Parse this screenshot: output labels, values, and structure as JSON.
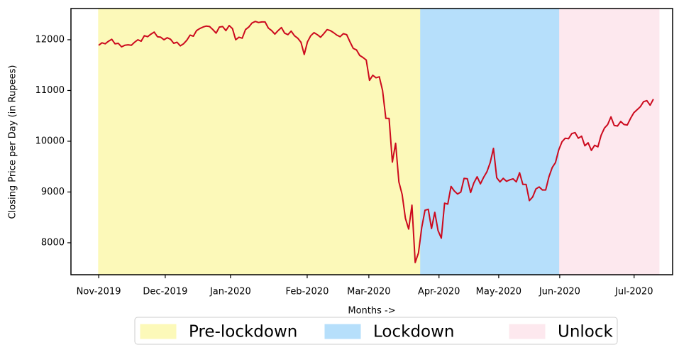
{
  "chart_data": {
    "type": "line",
    "y_label": "Closing Price per Day (in Rupees)",
    "x_label": "Months ->",
    "color": "#cc0a1e",
    "xlim": [
      -8.5,
      175.9
    ],
    "ylim": [
      7370,
      12615
    ],
    "yticks": [
      8000,
      9000,
      10000,
      11000,
      12000
    ],
    "xticks": [
      {
        "value": 0,
        "label": "Nov-2019"
      },
      {
        "value": 20.4,
        "label": "Dec-2019"
      },
      {
        "value": 40.4,
        "label": "Jan-2020"
      },
      {
        "value": 63.9,
        "label": "Feb-2020"
      },
      {
        "value": 82.8,
        "label": "Mar-2020"
      },
      {
        "value": 104.3,
        "label": "Apr-2020"
      },
      {
        "value": 122.6,
        "label": "May-2020"
      },
      {
        "value": 141.3,
        "label": "Jun-2020"
      },
      {
        "value": 164.1,
        "label": "Jul-2020"
      }
    ],
    "spans": [
      {
        "name": "Pre-lockdown",
        "color": "#fcf9b9",
        "from": 0,
        "to": 98.7
      },
      {
        "name": "Lockdown",
        "color": "#b6dffb",
        "from": 98.7,
        "to": 141.3
      },
      {
        "name": "Unlock",
        "color": "#fde8ee",
        "from": 141.3,
        "to": 171.7
      }
    ],
    "values": [
      11890,
      11940,
      11920,
      11970,
      12010,
      11920,
      11930,
      11860,
      11890,
      11900,
      11890,
      11950,
      12000,
      11970,
      12080,
      12060,
      12110,
      12150,
      12060,
      12050,
      12000,
      12040,
      12010,
      11930,
      11950,
      11880,
      11920,
      11990,
      12090,
      12070,
      12180,
      12220,
      12250,
      12270,
      12260,
      12200,
      12130,
      12250,
      12260,
      12180,
      12280,
      12220,
      12000,
      12050,
      12030,
      12200,
      12250,
      12330,
      12360,
      12340,
      12350,
      12350,
      12230,
      12180,
      12110,
      12180,
      12240,
      12130,
      12100,
      12170,
      12080,
      12030,
      11950,
      11710,
      11960,
      12080,
      12140,
      12100,
      12050,
      12120,
      12200,
      12180,
      12140,
      12090,
      12060,
      12120,
      12100,
      11960,
      11830,
      11800,
      11690,
      11650,
      11600,
      11200,
      11300,
      11250,
      11270,
      11000,
      10450,
      10450,
      9590,
      9960,
      9200,
      8950,
      8480,
      8270,
      8740,
      7610,
      7800,
      8300,
      8640,
      8660,
      8280,
      8600,
      8240,
      8090,
      8780,
      8760,
      9110,
      9020,
      8960,
      9000,
      9270,
      9260,
      8990,
      9180,
      9300,
      9160,
      9290,
      9400,
      9580,
      9860,
      9280,
      9200,
      9270,
      9210,
      9240,
      9260,
      9200,
      9380,
      9150,
      9150,
      8830,
      8900,
      9060,
      9100,
      9040,
      9040,
      9300,
      9480,
      9580,
      9830,
      9990,
      10060,
      10050,
      10150,
      10170,
      10060,
      10100,
      9910,
      9970,
      9820,
      9920,
      9890,
      10120,
      10260,
      10330,
      10480,
      10310,
      10300,
      10390,
      10330,
      10320,
      10450,
      10560,
      10620,
      10680,
      10780,
      10800,
      10710,
      10830
    ]
  }
}
